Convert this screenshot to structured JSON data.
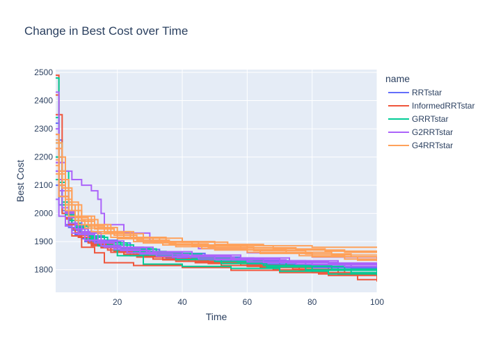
{
  "chart_data": {
    "type": "line",
    "title": "Change in Best Cost over Time",
    "xlabel": "Time",
    "ylabel": "Best Cost",
    "xlim": [
      1,
      100
    ],
    "ylim": [
      1720,
      2510
    ],
    "xticks": [
      20,
      40,
      60,
      80,
      100
    ],
    "yticks": [
      1800,
      1900,
      2000,
      2100,
      2200,
      2300,
      2400,
      2500
    ],
    "grid": true,
    "legend_title": "name",
    "legend_position": "right",
    "series": [
      {
        "name": "RRTstar",
        "color": "#636efa",
        "runs": [
          {
            "x": [
              1,
              3,
              5,
              8,
              12,
              18,
              25,
              35,
              50,
              70,
              85,
              100
            ],
            "y": [
              2260,
              2010,
              1950,
              1915,
              1890,
              1870,
              1855,
              1840,
              1830,
              1815,
              1800,
              1790
            ]
          },
          {
            "x": [
              1,
              2,
              4,
              7,
              10,
              15,
              22,
              30,
              45,
              60,
              80,
              100
            ],
            "y": [
              2150,
              2030,
              1960,
              1925,
              1900,
              1880,
              1862,
              1850,
              1835,
              1820,
              1808,
              1800
            ]
          },
          {
            "x": [
              1,
              3,
              6,
              9,
              14,
              20,
              30,
              42,
              55,
              72,
              90,
              100
            ],
            "y": [
              2200,
              2000,
              1940,
              1910,
              1885,
              1865,
              1850,
              1838,
              1826,
              1812,
              1802,
              1798
            ]
          },
          {
            "x": [
              1,
              2,
              5,
              8,
              13,
              20,
              28,
              40,
              58,
              75,
              88,
              100
            ],
            "y": [
              2320,
              2060,
              1975,
              1935,
              1905,
              1880,
              1862,
              1845,
              1828,
              1810,
              1790,
              1782
            ]
          },
          {
            "x": [
              1,
              4,
              7,
              11,
              16,
              24,
              33,
              47,
              62,
              78,
              92,
              100
            ],
            "y": [
              2100,
              1985,
              1948,
              1918,
              1895,
              1872,
              1858,
              1842,
              1832,
              1818,
              1806,
              1802
            ]
          }
        ]
      },
      {
        "name": "InformedRRTstar",
        "color": "#ef553b",
        "runs": [
          {
            "x": [
              1,
              2,
              4,
              6,
              9,
              13,
              16,
              25,
              40,
              55,
              70,
              85,
              100
            ],
            "y": [
              2490,
              2150,
              1980,
              1920,
              1880,
              1860,
              1825,
              1815,
              1808,
              1798,
              1790,
              1780,
              1775
            ]
          },
          {
            "x": [
              1,
              3,
              5,
              8,
              12,
              18,
              26,
              38,
              52,
              68,
              82,
              94,
              100
            ],
            "y": [
              2350,
              2040,
              1960,
              1915,
              1885,
              1862,
              1845,
              1830,
              1815,
              1800,
              1785,
              1765,
              1760
            ]
          },
          {
            "x": [
              1,
              2,
              5,
              8,
              11,
              17,
              24,
              34,
              48,
              64,
              80,
              100
            ],
            "y": [
              2280,
              2060,
              1965,
              1922,
              1895,
              1870,
              1850,
              1835,
              1822,
              1808,
              1790,
              1785
            ]
          },
          {
            "x": [
              1,
              3,
              6,
              10,
              15,
              22,
              31,
              44,
              60,
              76,
              90,
              100
            ],
            "y": [
              2180,
              2000,
              1945,
              1905,
              1878,
              1855,
              1838,
              1825,
              1812,
              1798,
              1788,
              1784
            ]
          },
          {
            "x": [
              1,
              2,
              4,
              7,
              12,
              19,
              28,
              42,
              58,
              74,
              88,
              100
            ],
            "y": [
              2420,
              2100,
              1985,
              1932,
              1890,
              1866,
              1846,
              1830,
              1816,
              1802,
              1782,
              1758
            ]
          }
        ]
      },
      {
        "name": "GRRTstar",
        "color": "#00cc96",
        "runs": [
          {
            "x": [
              1,
              2,
              4,
              7,
              10,
              14,
              20,
              28,
              40,
              55,
              70,
              85,
              100
            ],
            "y": [
              2340,
              2110,
              2000,
              1950,
              1910,
              1885,
              1850,
              1820,
              1812,
              1805,
              1795,
              1785,
              1780
            ]
          },
          {
            "x": [
              1,
              3,
              6,
              9,
              13,
              19,
              27,
              38,
              52,
              66,
              80,
              100
            ],
            "y": [
              2250,
              2040,
              1965,
              1925,
              1895,
              1870,
              1852,
              1836,
              1822,
              1810,
              1798,
              1792
            ]
          },
          {
            "x": [
              1,
              2,
              5,
              8,
              12,
              17,
              25,
              35,
              50,
              65,
              78,
              92,
              100
            ],
            "y": [
              2480,
              2150,
              2010,
              1955,
              1915,
              1888,
              1865,
              1848,
              1830,
              1815,
              1800,
              1790,
              1788
            ]
          },
          {
            "x": [
              1,
              4,
              7,
              11,
              16,
              23,
              32,
              46,
              60,
              75,
              90,
              100
            ],
            "y": [
              2120,
              1995,
              1955,
              1920,
              1895,
              1874,
              1856,
              1840,
              1826,
              1812,
              1800,
              1796
            ]
          },
          {
            "x": [
              1,
              3,
              5,
              9,
              14,
              21,
              30,
              43,
              57,
              72,
              86,
              100
            ],
            "y": [
              2200,
              2030,
              1975,
              1930,
              1900,
              1876,
              1858,
              1842,
              1828,
              1814,
              1802,
              1794
            ]
          }
        ]
      },
      {
        "name": "G2RRTstar",
        "color": "#ab63fa",
        "runs": [
          {
            "x": [
              1,
              3,
              6,
              9,
              12,
              14,
              15,
              16,
              22,
              30,
              45,
              60,
              80,
              100
            ],
            "y": [
              2230,
              2150,
              2120,
              2100,
              2080,
              2050,
              2000,
              1960,
              1930,
              1900,
              1875,
              1860,
              1845,
              1840
            ]
          },
          {
            "x": [
              1,
              2,
              4,
              7,
              11,
              16,
              23,
              32,
              45,
              60,
              75,
              90,
              100
            ],
            "y": [
              2430,
              2120,
              2000,
              1945,
              1905,
              1880,
              1860,
              1848,
              1838,
              1828,
              1820,
              1812,
              1810
            ]
          },
          {
            "x": [
              1,
              3,
              5,
              8,
              13,
              19,
              27,
              37,
              50,
              65,
              80,
              100
            ],
            "y": [
              2150,
              2020,
              1965,
              1925,
              1895,
              1872,
              1856,
              1845,
              1836,
              1826,
              1818,
              1814
            ]
          },
          {
            "x": [
              1,
              2,
              5,
              9,
              14,
              20,
              29,
              40,
              55,
              70,
              85,
              100
            ],
            "y": [
              2300,
              2080,
              1985,
              1935,
              1900,
              1878,
              1862,
              1850,
              1840,
              1830,
              1822,
              1818
            ]
          },
          {
            "x": [
              1,
              4,
              7,
              10,
              15,
              22,
              31,
              43,
              58,
              73,
              88,
              100
            ],
            "y": [
              2180,
              2005,
              1960,
              1930,
              1902,
              1880,
              1864,
              1852,
              1842,
              1832,
              1824,
              1820
            ]
          },
          {
            "x": [
              1,
              2,
              4,
              6,
              10,
              15,
              21,
              30,
              42,
              56,
              72,
              88,
              100
            ],
            "y": [
              2050,
              1990,
              1955,
              1930,
              1905,
              1885,
              1868,
              1855,
              1845,
              1835,
              1826,
              1818,
              1816
            ]
          }
        ]
      },
      {
        "name": "G4RRTstar",
        "color": "#ffa15a",
        "runs": [
          {
            "x": [
              1,
              2,
              4,
              6,
              9,
              13,
              18,
              25,
              35,
              50,
              65,
              80,
              100
            ],
            "y": [
              2280,
              2200,
              2080,
              2030,
              1990,
              1960,
              1935,
              1915,
              1900,
              1890,
              1885,
              1880,
              1880
            ]
          },
          {
            "x": [
              1,
              3,
              5,
              8,
              12,
              17,
              24,
              33,
              45,
              60,
              75,
              90,
              100
            ],
            "y": [
              2250,
              2120,
              2040,
              1990,
              1960,
              1935,
              1915,
              1900,
              1888,
              1878,
              1870,
              1862,
              1860
            ]
          },
          {
            "x": [
              1,
              2,
              4,
              7,
              11,
              16,
              22,
              31,
              43,
              58,
              72,
              86,
              100
            ],
            "y": [
              2190,
              2100,
              2030,
              1985,
              1955,
              1930,
              1912,
              1898,
              1885,
              1872,
              1862,
              1852,
              1850
            ]
          },
          {
            "x": [
              1,
              3,
              6,
              9,
              13,
              19,
              26,
              36,
              48,
              62,
              78,
              92,
              100
            ],
            "y": [
              2230,
              2090,
              2010,
              1972,
              1945,
              1922,
              1905,
              1892,
              1880,
              1868,
              1856,
              1846,
              1842
            ]
          },
          {
            "x": [
              1,
              2,
              5,
              8,
              12,
              18,
              25,
              34,
              46,
              60,
              76,
              90,
              100
            ],
            "y": [
              2170,
              2060,
              1990,
              1960,
              1935,
              1915,
              1900,
              1888,
              1875,
              1862,
              1850,
              1838,
              1836
            ]
          },
          {
            "x": [
              1,
              4,
              7,
              10,
              14,
              20,
              28,
              38,
              50,
              64,
              80,
              94,
              100
            ],
            "y": [
              2140,
              2010,
              1975,
              1948,
              1928,
              1910,
              1895,
              1882,
              1870,
              1858,
              1846,
              1834,
              1830
            ]
          },
          {
            "x": [
              1,
              2,
              4,
              6,
              9,
              14,
              20,
              28,
              40,
              54,
              68,
              84,
              100
            ],
            "y": [
              2260,
              2150,
              2050,
              2010,
              1978,
              1950,
              1928,
              1912,
              1898,
              1885,
              1874,
              1866,
              1864
            ]
          }
        ]
      }
    ]
  }
}
